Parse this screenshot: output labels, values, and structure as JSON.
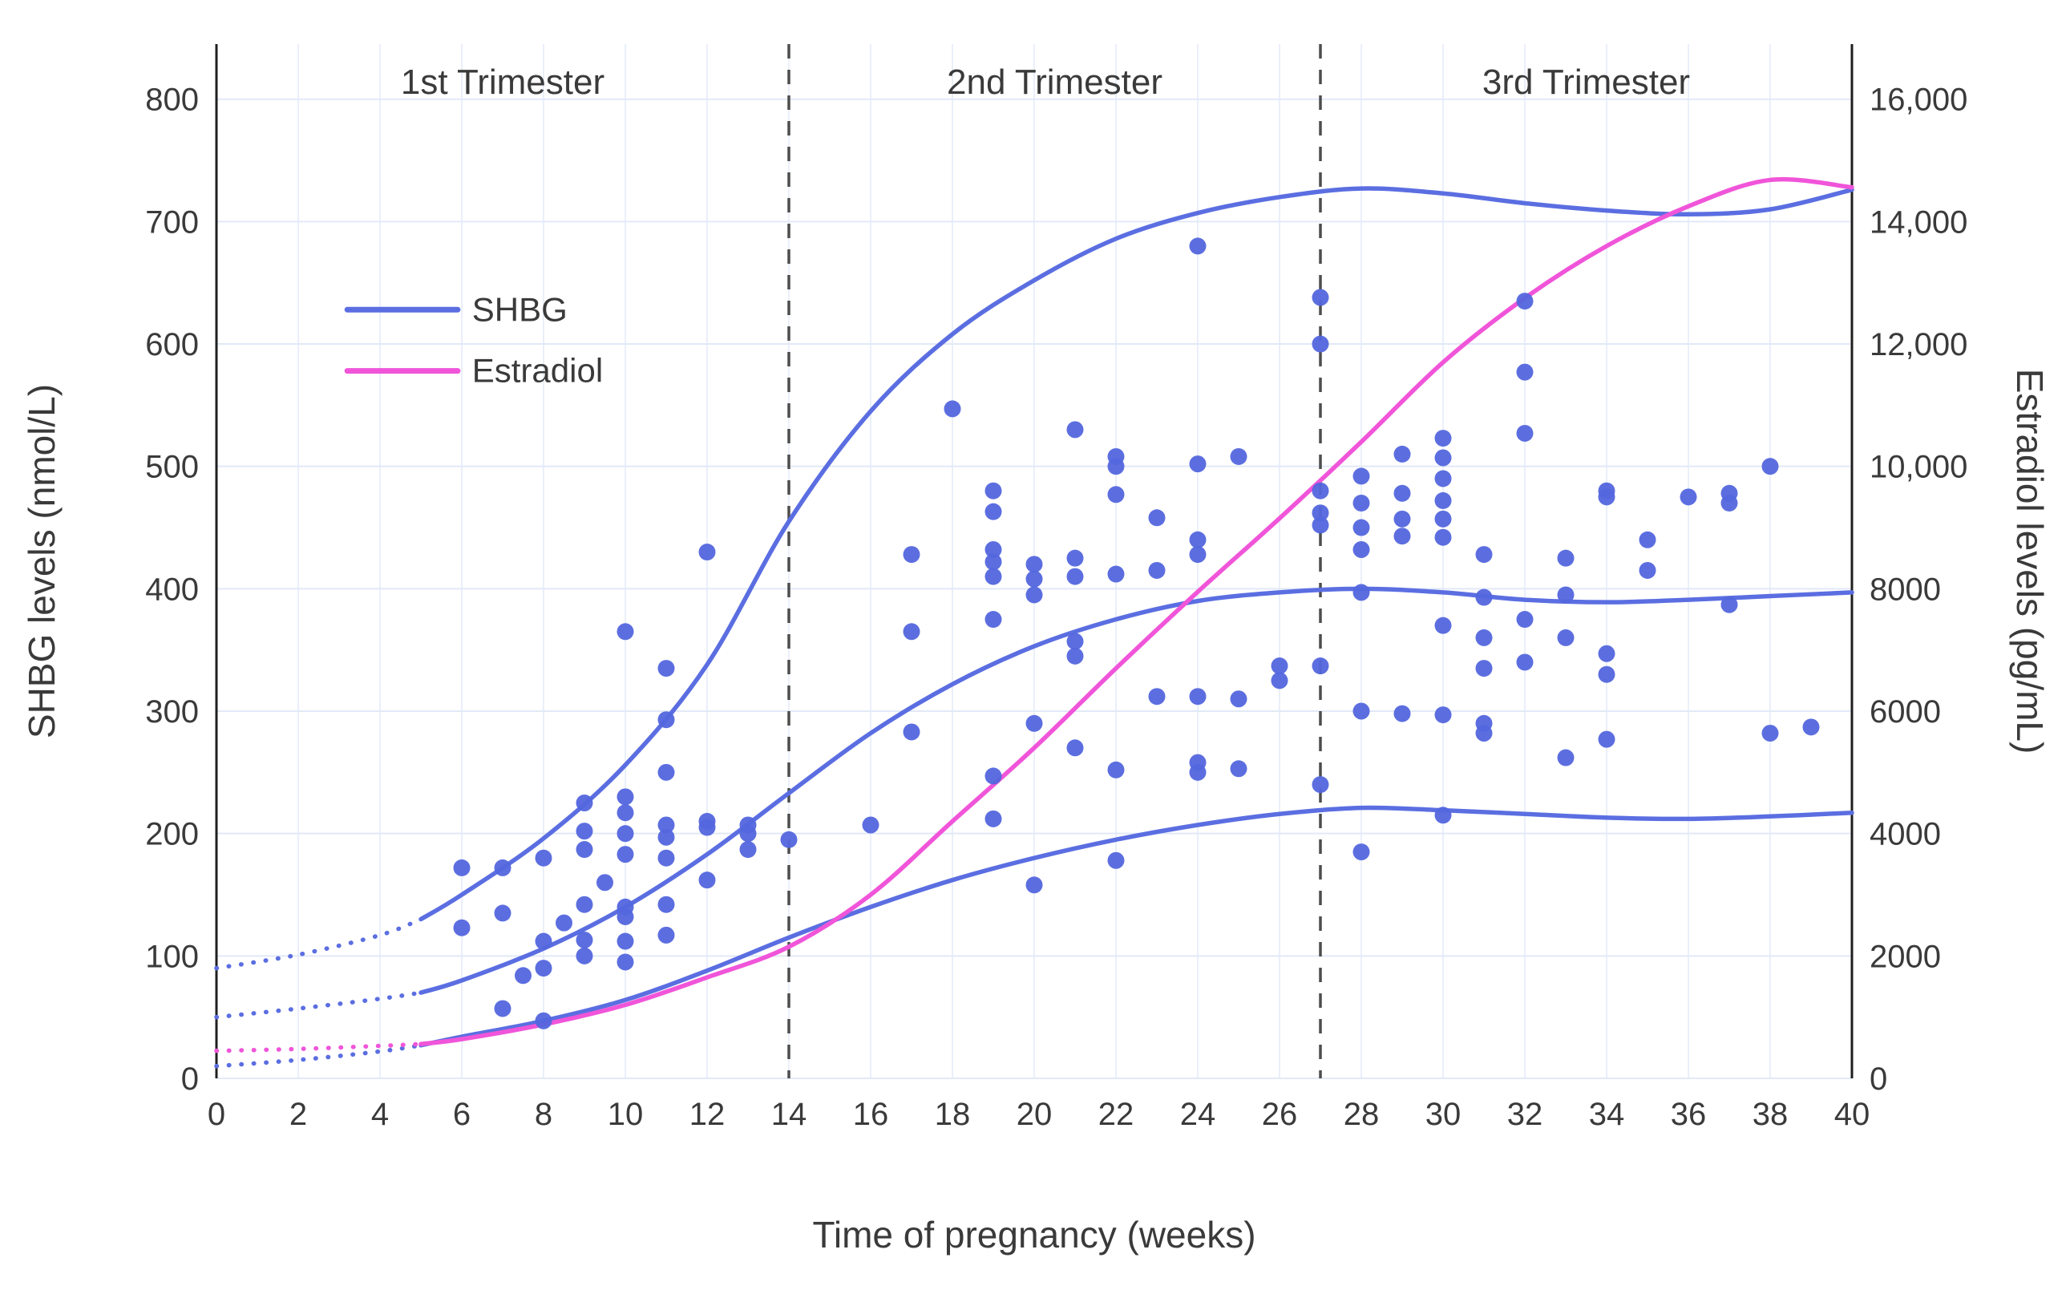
{
  "colors": {
    "shbg": "#5b6ee1",
    "shbg_dot": "#5366dd",
    "estradiol": "#f055d9",
    "axis_line": "#1f1f1f",
    "divider": "#4d4d4d",
    "text": "#3a3a3a",
    "grid_h": "#e2e9f7",
    "grid_v": "#eaeffa"
  },
  "chart_data": {
    "type": "scatter",
    "title": "",
    "xlabel": "Time of pregnancy (weeks)",
    "ylabel_left": "SHBG levels (nmol/L)",
    "ylabel_right": "Estradiol levels (pg/mL)",
    "xlim": [
      0,
      40
    ],
    "ylim_left": [
      0,
      845
    ],
    "right_to_left_scale": 20,
    "grid": true,
    "x_ticks": [
      0,
      2,
      4,
      6,
      8,
      10,
      12,
      14,
      16,
      18,
      20,
      22,
      24,
      26,
      28,
      30,
      32,
      34,
      36,
      38,
      40
    ],
    "y_left_ticks": [
      0,
      100,
      200,
      300,
      400,
      500,
      600,
      700,
      800
    ],
    "y_right_ticks": [
      {
        "v": 0,
        "label": "0"
      },
      {
        "v": 2000,
        "label": "2000"
      },
      {
        "v": 4000,
        "label": "4000"
      },
      {
        "v": 6000,
        "label": "6000"
      },
      {
        "v": 8000,
        "label": "8000"
      },
      {
        "v": 10000,
        "label": "10,000"
      },
      {
        "v": 12000,
        "label": "12,000"
      },
      {
        "v": 14000,
        "label": "14,000"
      },
      {
        "v": 16000,
        "label": "16,000"
      }
    ],
    "trimesters": {
      "dividers": [
        14,
        27
      ],
      "labels": [
        {
          "text": "1st Trimester",
          "x": 7
        },
        {
          "text": "2nd Trimester",
          "x": 20.5
        },
        {
          "text": "3rd Trimester",
          "x": 33.5
        }
      ]
    },
    "legend": {
      "entries": [
        {
          "label": "SHBG",
          "color": "#5b6ee1",
          "y_value": 628
        },
        {
          "label": "Estradiol",
          "color": "#f055d9",
          "y_value": 578
        }
      ]
    },
    "curves": [
      {
        "name": "SHBG upper percentile",
        "color": "#5b6ee1",
        "axis": "left",
        "dotted_until": 5,
        "points": [
          [
            0,
            90
          ],
          [
            2,
            101
          ],
          [
            4,
            117
          ],
          [
            5,
            130
          ],
          [
            6,
            150
          ],
          [
            8,
            196
          ],
          [
            10,
            256
          ],
          [
            12,
            338
          ],
          [
            14,
            455
          ],
          [
            16,
            545
          ],
          [
            18,
            608
          ],
          [
            20,
            652
          ],
          [
            22,
            686
          ],
          [
            24,
            707
          ],
          [
            26,
            720
          ],
          [
            28,
            727
          ],
          [
            30,
            723
          ],
          [
            32,
            715
          ],
          [
            34,
            709
          ],
          [
            36,
            706
          ],
          [
            38,
            710
          ],
          [
            40,
            726
          ]
        ]
      },
      {
        "name": "SHBG median",
        "color": "#5b6ee1",
        "axis": "left",
        "dotted_until": 5,
        "points": [
          [
            0,
            50
          ],
          [
            2,
            57
          ],
          [
            4,
            65
          ],
          [
            5,
            70
          ],
          [
            6,
            80
          ],
          [
            8,
            106
          ],
          [
            10,
            140
          ],
          [
            12,
            183
          ],
          [
            14,
            233
          ],
          [
            16,
            282
          ],
          [
            18,
            322
          ],
          [
            20,
            353
          ],
          [
            22,
            375
          ],
          [
            24,
            390
          ],
          [
            26,
            397
          ],
          [
            28,
            400
          ],
          [
            30,
            397
          ],
          [
            32,
            391
          ],
          [
            34,
            389
          ],
          [
            36,
            391
          ],
          [
            38,
            394
          ],
          [
            40,
            397
          ]
        ]
      },
      {
        "name": "SHBG lower percentile",
        "color": "#5b6ee1",
        "axis": "left",
        "dotted_until": 5,
        "points": [
          [
            0,
            10
          ],
          [
            2,
            15
          ],
          [
            4,
            22
          ],
          [
            5,
            27
          ],
          [
            6,
            34
          ],
          [
            8,
            47
          ],
          [
            10,
            64
          ],
          [
            12,
            88
          ],
          [
            14,
            115
          ],
          [
            16,
            140
          ],
          [
            18,
            162
          ],
          [
            20,
            180
          ],
          [
            22,
            195
          ],
          [
            24,
            207
          ],
          [
            26,
            216
          ],
          [
            28,
            221
          ],
          [
            30,
            219
          ],
          [
            32,
            216
          ],
          [
            34,
            213
          ],
          [
            36,
            212
          ],
          [
            38,
            214
          ],
          [
            40,
            217
          ]
        ]
      },
      {
        "name": "Estradiol",
        "color": "#f055d9",
        "axis": "right",
        "dotted_until": 5,
        "points": [
          [
            0,
            450
          ],
          [
            2,
            480
          ],
          [
            4,
            530
          ],
          [
            5,
            560
          ],
          [
            6,
            640
          ],
          [
            8,
            880
          ],
          [
            10,
            1200
          ],
          [
            12,
            1650
          ],
          [
            14,
            2150
          ],
          [
            16,
            3000
          ],
          [
            18,
            4200
          ],
          [
            20,
            5400
          ],
          [
            22,
            6700
          ],
          [
            24,
            7950
          ],
          [
            26,
            9150
          ],
          [
            28,
            10400
          ],
          [
            30,
            11700
          ],
          [
            32,
            12750
          ],
          [
            34,
            13600
          ],
          [
            36,
            14250
          ],
          [
            38,
            14680
          ],
          [
            40,
            14560
          ]
        ]
      }
    ],
    "scatter": {
      "name": "SHBG observations",
      "color": "#5366dd",
      "points": [
        [
          6,
          123
        ],
        [
          6,
          172
        ],
        [
          7,
          57
        ],
        [
          7,
          135
        ],
        [
          7,
          172
        ],
        [
          7.5,
          84
        ],
        [
          8,
          47
        ],
        [
          8,
          90
        ],
        [
          8,
          112
        ],
        [
          8,
          180
        ],
        [
          8.5,
          127
        ],
        [
          9,
          100
        ],
        [
          9,
          113
        ],
        [
          9,
          142
        ],
        [
          9,
          187
        ],
        [
          9,
          202
        ],
        [
          9,
          225
        ],
        [
          9.5,
          160
        ],
        [
          10,
          95
        ],
        [
          10,
          112
        ],
        [
          10,
          132
        ],
        [
          10,
          140
        ],
        [
          10,
          183
        ],
        [
          10,
          200
        ],
        [
          10,
          217
        ],
        [
          10,
          230
        ],
        [
          10,
          365
        ],
        [
          11,
          117
        ],
        [
          11,
          142
        ],
        [
          11,
          180
        ],
        [
          11,
          197
        ],
        [
          11,
          207
        ],
        [
          11,
          250
        ],
        [
          11,
          293
        ],
        [
          11,
          335
        ],
        [
          12,
          162
        ],
        [
          12,
          205
        ],
        [
          12,
          210
        ],
        [
          12,
          430
        ],
        [
          13,
          187
        ],
        [
          13,
          200
        ],
        [
          13,
          207
        ],
        [
          14,
          195
        ],
        [
          16,
          207
        ],
        [
          17,
          283
        ],
        [
          17,
          365
        ],
        [
          17,
          428
        ],
        [
          18,
          547
        ],
        [
          19,
          212
        ],
        [
          19,
          247
        ],
        [
          19,
          375
        ],
        [
          19,
          410
        ],
        [
          19,
          422
        ],
        [
          19,
          432
        ],
        [
          19,
          463
        ],
        [
          19,
          480
        ],
        [
          20,
          158
        ],
        [
          20,
          290
        ],
        [
          20,
          395
        ],
        [
          20,
          408
        ],
        [
          20,
          420
        ],
        [
          21,
          270
        ],
        [
          21,
          345
        ],
        [
          21,
          357
        ],
        [
          21,
          410
        ],
        [
          21,
          425
        ],
        [
          21,
          530
        ],
        [
          22,
          178
        ],
        [
          22,
          252
        ],
        [
          22,
          412
        ],
        [
          22,
          477
        ],
        [
          22,
          500
        ],
        [
          22,
          508
        ],
        [
          23,
          312
        ],
        [
          23,
          415
        ],
        [
          23,
          458
        ],
        [
          24,
          250
        ],
        [
          24,
          258
        ],
        [
          24,
          312
        ],
        [
          24,
          428
        ],
        [
          24,
          440
        ],
        [
          24,
          502
        ],
        [
          24,
          680
        ],
        [
          25,
          253
        ],
        [
          25,
          310
        ],
        [
          25,
          508
        ],
        [
          26,
          325
        ],
        [
          26,
          337
        ],
        [
          27,
          240
        ],
        [
          27,
          337
        ],
        [
          27,
          452
        ],
        [
          27,
          462
        ],
        [
          27,
          480
        ],
        [
          27,
          600
        ],
        [
          27,
          638
        ],
        [
          28,
          185
        ],
        [
          28,
          300
        ],
        [
          28,
          397
        ],
        [
          28,
          432
        ],
        [
          28,
          450
        ],
        [
          28,
          470
        ],
        [
          28,
          492
        ],
        [
          29,
          298
        ],
        [
          29,
          443
        ],
        [
          29,
          457
        ],
        [
          29,
          478
        ],
        [
          29,
          510
        ],
        [
          30,
          215
        ],
        [
          30,
          297
        ],
        [
          30,
          370
        ],
        [
          30,
          442
        ],
        [
          30,
          457
        ],
        [
          30,
          472
        ],
        [
          30,
          490
        ],
        [
          30,
          507
        ],
        [
          30,
          523
        ],
        [
          31,
          282
        ],
        [
          31,
          290
        ],
        [
          31,
          335
        ],
        [
          31,
          360
        ],
        [
          31,
          393
        ],
        [
          31,
          428
        ],
        [
          32,
          340
        ],
        [
          32,
          375
        ],
        [
          32,
          527
        ],
        [
          32,
          577
        ],
        [
          32,
          635
        ],
        [
          33,
          262
        ],
        [
          33,
          360
        ],
        [
          33,
          395
        ],
        [
          33,
          425
        ],
        [
          34,
          277
        ],
        [
          34,
          330
        ],
        [
          34,
          347
        ],
        [
          34,
          475
        ],
        [
          34,
          480
        ],
        [
          35,
          415
        ],
        [
          35,
          440
        ],
        [
          36,
          475
        ],
        [
          37,
          387
        ],
        [
          37,
          470
        ],
        [
          37,
          478
        ],
        [
          38,
          282
        ],
        [
          38,
          500
        ],
        [
          39,
          287
        ]
      ]
    }
  }
}
